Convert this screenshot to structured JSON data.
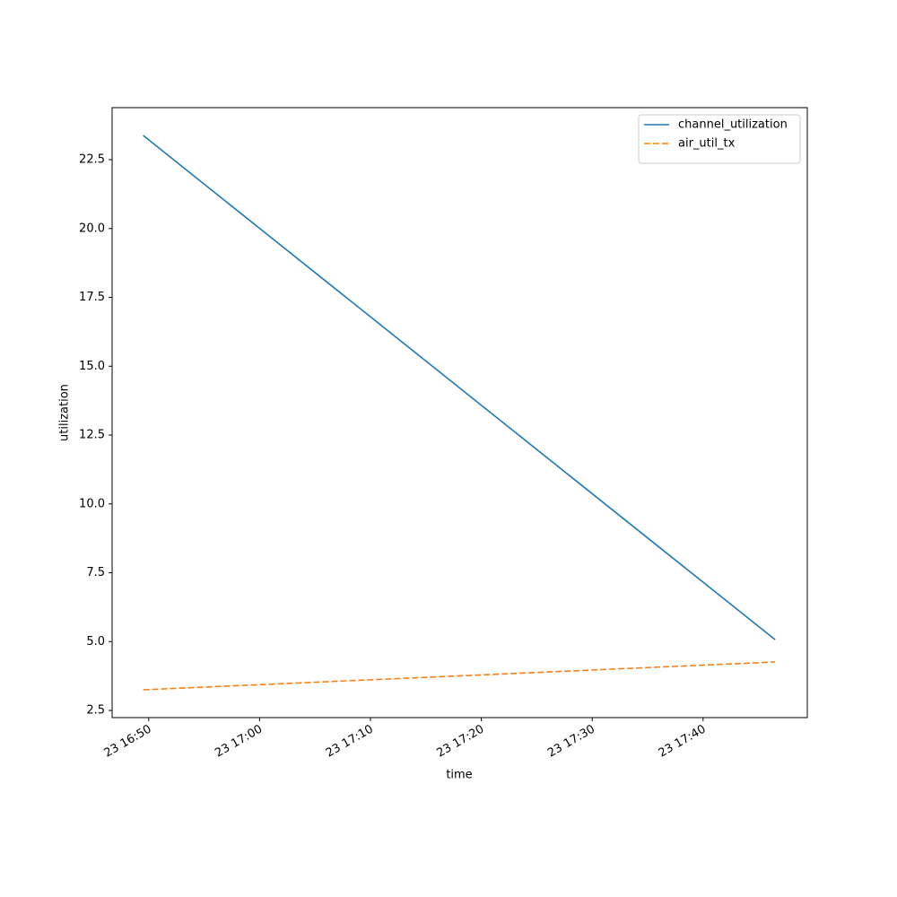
{
  "chart_data": {
    "type": "line",
    "x_label": "time",
    "y_label": "utilization",
    "x": [
      1009.5,
      1066.5
    ],
    "series": [
      {
        "name": "channel_utilization",
        "color": "#1f77b4",
        "linestyle": "solid",
        "values": [
          23.38,
          5.07
        ]
      },
      {
        "name": "air_util_tx",
        "color": "#ff7f0e",
        "linestyle": "dashed",
        "values": [
          3.25,
          4.26
        ]
      }
    ],
    "xlim": [
      1006.7,
      1069.4
    ],
    "xticks": [
      {
        "value": 1010,
        "label": "23 16:50"
      },
      {
        "value": 1020,
        "label": "23 17:00"
      },
      {
        "value": 1030,
        "label": "23 17:10"
      },
      {
        "value": 1040,
        "label": "23 17:20"
      },
      {
        "value": 1050,
        "label": "23 17:30"
      },
      {
        "value": 1060,
        "label": "23 17:40"
      }
    ],
    "ylim": [
      2.24,
      24.39
    ],
    "yticks": [
      2.5,
      {
        "value": 5,
        "label": "5.0"
      },
      7.5,
      {
        "value": 10,
        "label": "10.0"
      },
      12.5,
      {
        "value": 15,
        "label": "15.0"
      },
      17.5,
      {
        "value": 20,
        "label": "20.0"
      },
      22.5
    ],
    "grid": false,
    "legend": "upper right"
  }
}
